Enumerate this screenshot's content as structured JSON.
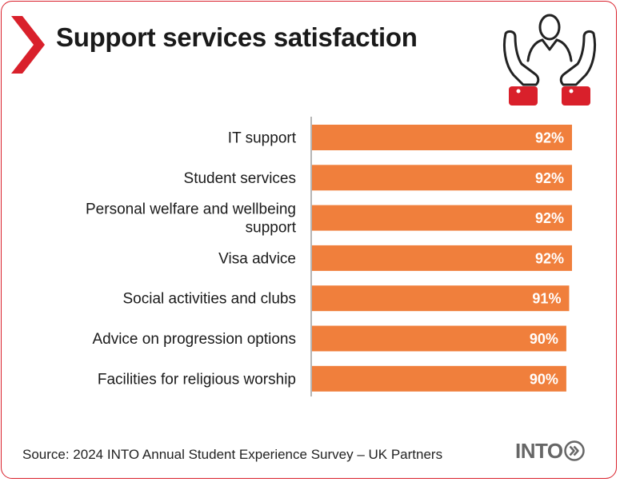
{
  "title": "Support services satisfaction",
  "source": "Source: 2024 INTO Annual Student Experience Survey – UK Partners",
  "logo_text": "INTO",
  "colors": {
    "accent_red": "#d9202b",
    "bar": "#f07f3c",
    "axis": "#b5b5b5"
  },
  "icons": [
    "chevron-right-icon",
    "helping-hands-person-icon",
    "double-chevron-circle-icon"
  ],
  "chart_data": {
    "type": "bar",
    "orientation": "horizontal",
    "categories": [
      "IT support",
      "Student services",
      "Personal welfare and wellbeing support",
      "Visa advice",
      "Social activities and clubs",
      "Advice on progression options",
      "Facilities for religious worship"
    ],
    "category_lines": [
      [
        "IT support"
      ],
      [
        "Student services"
      ],
      [
        "Personal welfare and wellbeing",
        "support"
      ],
      [
        "Visa advice"
      ],
      [
        "Social activities and clubs"
      ],
      [
        "Advice on progression options"
      ],
      [
        "Facilities for religious worship"
      ]
    ],
    "values": [
      92,
      92,
      92,
      92,
      91,
      90,
      90
    ],
    "value_labels": [
      "92%",
      "92%",
      "92%",
      "92%",
      "91%",
      "90%",
      "90%"
    ],
    "unit": "%",
    "title": "Support services satisfaction",
    "xlabel": "",
    "ylabel": "",
    "xlim": [
      0,
      92
    ],
    "grid": false,
    "legend": "none"
  }
}
